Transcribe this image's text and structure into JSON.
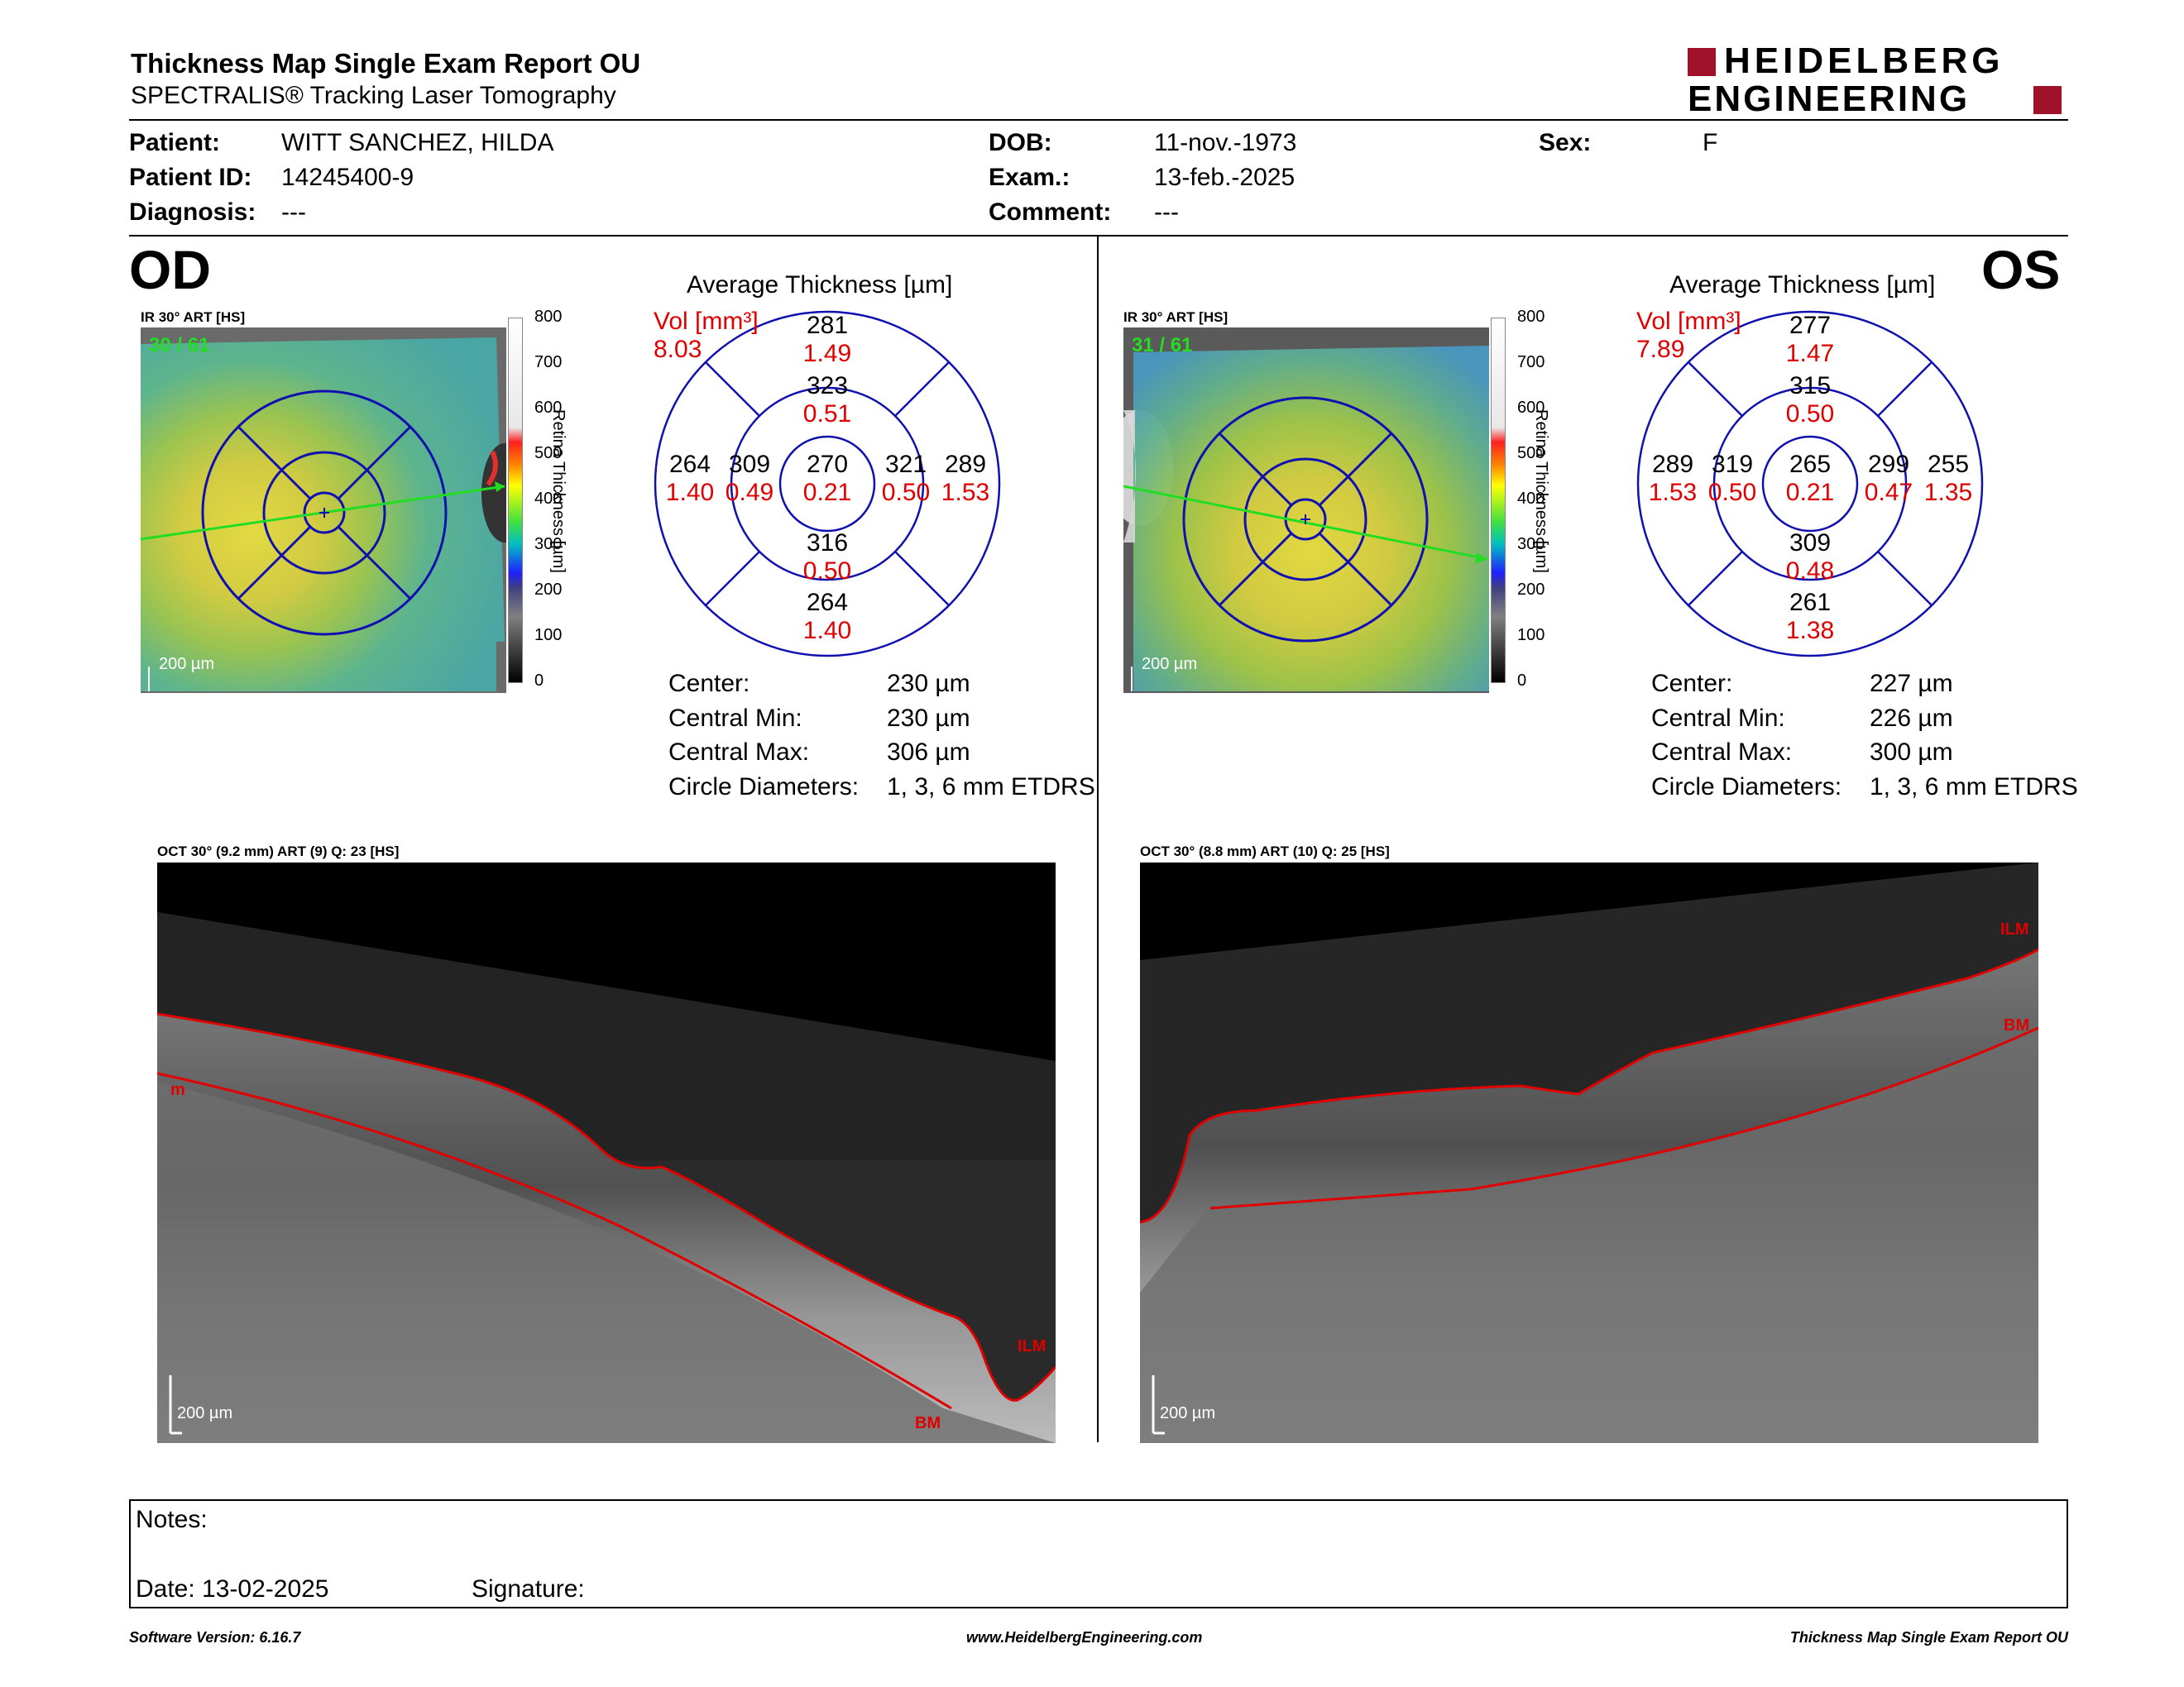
{
  "header": {
    "title": "Thickness Map Single Exam Report OU",
    "subtitle": "SPECTRALIS® Tracking Laser Tomography",
    "logo_line1": "HEIDELBERG",
    "logo_line2": "ENGINEERING"
  },
  "patient": {
    "patient_label": "Patient:",
    "patient_value": "WITT SANCHEZ, HILDA",
    "id_label": "Patient ID:",
    "id_value": "14245400-9",
    "diagnosis_label": "Diagnosis:",
    "diagnosis_value": "---",
    "dob_label": "DOB:",
    "dob_value": "11-nov.-1973",
    "exam_label": "Exam.:",
    "exam_value": "13-feb.-2025",
    "comment_label": "Comment:",
    "comment_value": "---",
    "sex_label": "Sex:",
    "sex_value": "F"
  },
  "colorbar": {
    "ticks": [
      "800",
      "700",
      "600",
      "500",
      "400",
      "300",
      "200",
      "100",
      "0"
    ],
    "label": "Retina Thickness [µm]"
  },
  "od": {
    "eye_label": "OD",
    "ir_caption": "IR 30° ART [HS]",
    "ir_frames": "30 / 61",
    "scale": "200 µm",
    "avg_title": "Average Thickness [µm]",
    "vol_label": "Vol [mm³]",
    "vol_value": "8.03",
    "sectors": {
      "center": {
        "t": "270",
        "v": "0.21"
      },
      "inner_sup": {
        "t": "323",
        "v": "0.51"
      },
      "inner_inf": {
        "t": "316",
        "v": "0.50"
      },
      "inner_left": {
        "t": "309",
        "v": "0.49"
      },
      "inner_right": {
        "t": "321",
        "v": "0.50"
      },
      "outer_sup": {
        "t": "281",
        "v": "1.49"
      },
      "outer_inf": {
        "t": "264",
        "v": "1.40"
      },
      "outer_left": {
        "t": "264",
        "v": "1.40"
      },
      "outer_right": {
        "t": "289",
        "v": "1.53"
      }
    },
    "stats": {
      "center_label": "Center:",
      "center_value": "230 µm",
      "min_label": "Central Min:",
      "min_value": "230 µm",
      "max_label": "Central Max:",
      "max_value": "306 µm",
      "diam_label": "Circle Diameters:",
      "diam_value": "1, 3, 6 mm ETDRS"
    },
    "oct_caption": "OCT 30° (9.2 mm) ART (9) Q: 23 [HS]",
    "oct_scale": "200 µm",
    "ilm": "ILM",
    "bm": "BM",
    "ilm_left": "m"
  },
  "os": {
    "eye_label": "OS",
    "ir_caption": "IR 30° ART [HS]",
    "ir_frames": "31 / 61",
    "scale": "200 µm",
    "avg_title": "Average Thickness [µm]",
    "vol_label": "Vol [mm³]",
    "vol_value": "7.89",
    "sectors": {
      "center": {
        "t": "265",
        "v": "0.21"
      },
      "inner_sup": {
        "t": "315",
        "v": "0.50"
      },
      "inner_inf": {
        "t": "309",
        "v": "0.48"
      },
      "inner_left": {
        "t": "319",
        "v": "0.50"
      },
      "inner_right": {
        "t": "299",
        "v": "0.47"
      },
      "outer_sup": {
        "t": "277",
        "v": "1.47"
      },
      "outer_inf": {
        "t": "261",
        "v": "1.38"
      },
      "outer_left": {
        "t": "289",
        "v": "1.53"
      },
      "outer_right": {
        "t": "255",
        "v": "1.35"
      }
    },
    "stats": {
      "center_label": "Center:",
      "center_value": "227 µm",
      "min_label": "Central Min:",
      "min_value": "226 µm",
      "max_label": "Central Max:",
      "max_value": "300 µm",
      "diam_label": "Circle Diameters:",
      "diam_value": "1, 3, 6 mm ETDRS"
    },
    "oct_caption": "OCT 30° (8.8 mm) ART (10) Q: 25 [HS]",
    "oct_scale": "200 µm",
    "ilm": "ILM",
    "bm": "BM"
  },
  "notes": {
    "notes_label": "Notes:",
    "date_label": "Date: 13-02-2025",
    "signature_label": "Signature:"
  },
  "footer": {
    "software": "Software Version: 6.16.7",
    "website": "www.HeidelbergEngineering.com",
    "report": "Thickness Map Single Exam Report OU"
  },
  "colors": {
    "accent_red": "#e00000",
    "logo_red": "#a0122a",
    "grid_blue": "#1010b0"
  }
}
